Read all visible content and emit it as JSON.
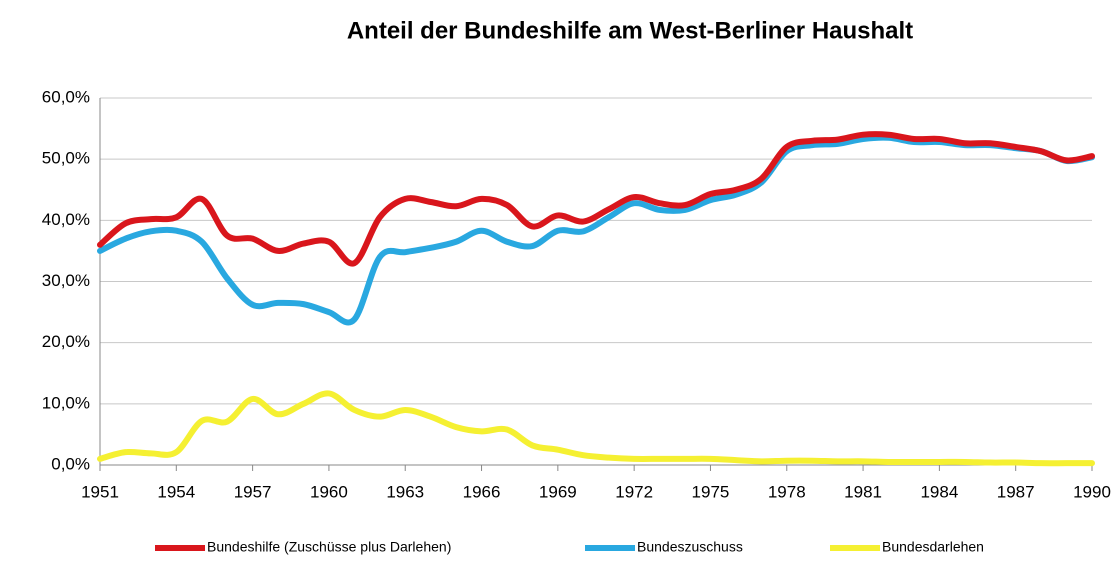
{
  "chart_data": {
    "type": "line",
    "title": "Anteil der Bundeshilfe am West-Berliner Haushalt",
    "x": [
      1951,
      1952,
      1953,
      1954,
      1955,
      1956,
      1957,
      1958,
      1959,
      1960,
      1961,
      1962,
      1963,
      1964,
      1965,
      1966,
      1967,
      1968,
      1969,
      1970,
      1971,
      1972,
      1973,
      1974,
      1975,
      1976,
      1977,
      1978,
      1979,
      1980,
      1981,
      1982,
      1983,
      1984,
      1985,
      1986,
      1987,
      1988,
      1989,
      1990
    ],
    "series": [
      {
        "name": "Bundeshilfe (Zuschüsse plus Darlehen)",
        "color": "#d9161c",
        "values": [
          36,
          39.5,
          40.2,
          40.5,
          43.5,
          37.5,
          37,
          35,
          36.2,
          36.5,
          33,
          40.5,
          43.5,
          43,
          42.3,
          43.5,
          42.5,
          39,
          40.8,
          39.8,
          41.8,
          43.8,
          42.8,
          42.5,
          44.3,
          45,
          46.8,
          52,
          53,
          53.2,
          54,
          54,
          53.3,
          53.3,
          52.6,
          52.6,
          52,
          51.3,
          49.8,
          50.5
        ]
      },
      {
        "name": "Bundeszuschuss",
        "color": "#29a8e0",
        "values": [
          35,
          37,
          38.2,
          38.3,
          36.5,
          30.5,
          26.2,
          26.5,
          26.3,
          25,
          23.8,
          34,
          34.8,
          35.5,
          36.5,
          38.3,
          36.5,
          35.8,
          38.3,
          38.2,
          40.5,
          42.8,
          41.7,
          41.7,
          43.3,
          44.2,
          46.2,
          51.3,
          52.3,
          52.5,
          53.3,
          53.5,
          52.8,
          52.8,
          52.3,
          52.3,
          51.8,
          51.3,
          49.7,
          50.3
        ]
      },
      {
        "name": "Bundesdarlehen",
        "color": "#f5f032",
        "values": [
          1,
          2.1,
          1.9,
          2.1,
          7.2,
          7.1,
          10.8,
          8.3,
          10,
          11.7,
          9,
          7.9,
          9,
          7.9,
          6.2,
          5.5,
          5.8,
          3.2,
          2.5,
          1.6,
          1.2,
          1,
          1,
          1,
          1,
          0.8,
          0.6,
          0.7,
          0.7,
          0.6,
          0.6,
          0.5,
          0.5,
          0.5,
          0.5,
          0.4,
          0.4,
          0.3,
          0.3,
          0.3
        ]
      }
    ],
    "xlim": [
      1951,
      1990
    ],
    "xticks": [
      1951,
      1954,
      1957,
      1960,
      1963,
      1966,
      1969,
      1972,
      1975,
      1978,
      1981,
      1984,
      1987,
      1990
    ],
    "ylim": [
      0,
      60
    ],
    "yticks": [
      {
        "value": 0,
        "label": "0,0%"
      },
      {
        "value": 10,
        "label": "10,0%"
      },
      {
        "value": 20,
        "label": "20,0%"
      },
      {
        "value": 30,
        "label": "30,0%"
      },
      {
        "value": 40,
        "label": "40,0%"
      },
      {
        "value": 50,
        "label": "50,0%"
      },
      {
        "value": 60,
        "label": "60,0%"
      }
    ],
    "grid": true,
    "legend": "bottom"
  }
}
